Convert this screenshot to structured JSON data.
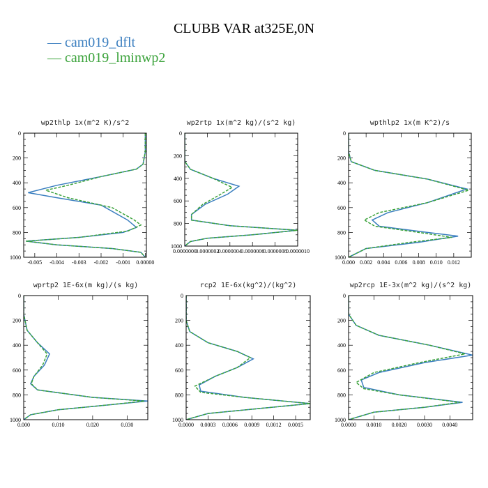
{
  "title": "CLUBB VAR at325E,0N",
  "legend": [
    {
      "name": "cam019_dflt",
      "color": "#3a7ebf",
      "dash": false
    },
    {
      "name": "cam019_lminwp2",
      "color": "#3aa23a",
      "dash": true
    }
  ],
  "chart_data": [
    {
      "type": "line",
      "title": "wp2thlp   1x(m^2 K)/s^2",
      "xlim": [
        -0.0055,
        5e-05
      ],
      "ylim": [
        1000,
        0
      ],
      "xticks": [
        -0.005,
        -0.004,
        -0.003,
        -0.002,
        -0.001,
        0.0
      ],
      "xtick_labels": [
        "-0.005",
        "-0.004",
        "-0.003",
        "-0.002",
        "-0.001",
        "0.00000"
      ],
      "yticks": [
        0,
        200,
        400,
        600,
        800,
        1000
      ],
      "series": [
        {
          "name": "cam019_dflt",
          "points": [
            [
              0,
              0
            ],
            [
              0,
              150
            ],
            [
              -0.0001,
              250
            ],
            [
              -0.0004,
              290
            ],
            [
              -0.002,
              350
            ],
            [
              -0.004,
              420
            ],
            [
              -0.0053,
              480
            ],
            [
              -0.004,
              520
            ],
            [
              -0.002,
              580
            ],
            [
              -0.0008,
              700
            ],
            [
              -0.0004,
              760
            ],
            [
              -0.001,
              800
            ],
            [
              -0.003,
              840
            ],
            [
              -0.0054,
              870
            ],
            [
              -0.004,
              900
            ],
            [
              -0.0015,
              930
            ],
            [
              -0.0002,
              960
            ],
            [
              0,
              1000
            ]
          ]
        },
        {
          "name": "cam019_lminwp2",
          "points": [
            [
              0,
              0
            ],
            [
              0,
              150
            ],
            [
              -0.0001,
              250
            ],
            [
              -0.0004,
              290
            ],
            [
              -0.002,
              350
            ],
            [
              -0.0035,
              420
            ],
            [
              -0.0045,
              460
            ],
            [
              -0.0035,
              520
            ],
            [
              -0.0015,
              600
            ],
            [
              -0.0005,
              700
            ],
            [
              -0.0002,
              740
            ],
            [
              -0.0008,
              790
            ],
            [
              -0.003,
              840
            ],
            [
              -0.0054,
              870
            ],
            [
              -0.004,
              900
            ],
            [
              -0.0015,
              930
            ],
            [
              -0.0002,
              960
            ],
            [
              0,
              1000
            ]
          ]
        }
      ]
    },
    {
      "type": "line",
      "title": "wp2rtp   1x(m^2 kg)/(s^2 kg)",
      "xlim": [
        0.0,
        1e-06
      ],
      "ylim": [
        1000,
        0
      ],
      "xticks": [
        0.0,
        2e-07,
        4e-07,
        6e-07,
        8e-07,
        1e-06
      ],
      "xtick_labels": [
        "0.0000000",
        "0.0000002",
        "0.0000004",
        "0.0000006",
        "0.0000008",
        "0.0000010"
      ],
      "yticks": [
        0,
        200,
        400,
        600,
        800,
        1000
      ],
      "series": [
        {
          "name": "cam019_dflt",
          "points": [
            [
              0,
              0
            ],
            [
              0,
              250
            ],
            [
              5e-08,
              320
            ],
            [
              2.5e-07,
              400
            ],
            [
              4.8e-07,
              470
            ],
            [
              3.8e-07,
              540
            ],
            [
              1.8e-07,
              630
            ],
            [
              6e-08,
              720
            ],
            [
              6e-08,
              770
            ],
            [
              4e-07,
              820
            ],
            [
              1e-06,
              860
            ],
            [
              6e-07,
              900
            ],
            [
              2e-07,
              930
            ],
            [
              5e-08,
              960
            ],
            [
              0,
              1000
            ]
          ]
        },
        {
          "name": "cam019_lminwp2",
          "points": [
            [
              0,
              0
            ],
            [
              0,
              250
            ],
            [
              5e-08,
              320
            ],
            [
              2.5e-07,
              400
            ],
            [
              4.2e-07,
              480
            ],
            [
              3.2e-07,
              540
            ],
            [
              1.6e-07,
              630
            ],
            [
              6e-08,
              720
            ],
            [
              6e-08,
              770
            ],
            [
              4e-07,
              820
            ],
            [
              1e-06,
              860
            ],
            [
              6e-07,
              900
            ],
            [
              2e-07,
              930
            ],
            [
              5e-08,
              960
            ],
            [
              0,
              1000
            ]
          ]
        }
      ]
    },
    {
      "type": "line",
      "title": "wpthlp2   1x(m K^2)/s",
      "xlim": [
        0.0,
        0.014
      ],
      "ylim": [
        1000,
        0
      ],
      "xticks": [
        0.0,
        0.002,
        0.004,
        0.006,
        0.008,
        0.01,
        0.012
      ],
      "xtick_labels": [
        "0.000",
        "0.002",
        "0.004",
        "0.006",
        "0.008",
        "0.010",
        "0.012"
      ],
      "yticks": [
        0,
        200,
        400,
        600,
        800,
        1000
      ],
      "series": [
        {
          "name": "cam019_dflt",
          "points": [
            [
              0,
              0
            ],
            [
              0,
              150
            ],
            [
              0.0003,
              230
            ],
            [
              0.003,
              300
            ],
            [
              0.009,
              370
            ],
            [
              0.0135,
              450
            ],
            [
              0.009,
              560
            ],
            [
              0.0045,
              640
            ],
            [
              0.0027,
              700
            ],
            [
              0.0035,
              750
            ],
            [
              0.009,
              800
            ],
            [
              0.0125,
              830
            ],
            [
              0.008,
              880
            ],
            [
              0.002,
              930
            ],
            [
              0,
              1000
            ]
          ]
        },
        {
          "name": "cam019_lminwp2",
          "points": [
            [
              0,
              0
            ],
            [
              0,
              150
            ],
            [
              0.0003,
              230
            ],
            [
              0.003,
              300
            ],
            [
              0.009,
              370
            ],
            [
              0.0137,
              460
            ],
            [
              0.009,
              560
            ],
            [
              0.0035,
              640
            ],
            [
              0.0018,
              700
            ],
            [
              0.003,
              750
            ],
            [
              0.008,
              800
            ],
            [
              0.0118,
              840
            ],
            [
              0.007,
              880
            ],
            [
              0.002,
              930
            ],
            [
              0,
              1000
            ]
          ]
        }
      ]
    },
    {
      "type": "line",
      "title": "wprtp2   1E-6x(m kg)/(s kg)",
      "xlim": [
        0.0,
        0.036
      ],
      "ylim": [
        1000,
        0
      ],
      "xticks": [
        0.0,
        0.01,
        0.02,
        0.03
      ],
      "xtick_labels": [
        "0.000",
        "0.010",
        "0.020",
        "0.030"
      ],
      "yticks": [
        0,
        200,
        400,
        600,
        800,
        1000
      ],
      "series": [
        {
          "name": "cam019_dflt",
          "points": [
            [
              0,
              0
            ],
            [
              0,
              150
            ],
            [
              0.001,
              280
            ],
            [
              0.004,
              380
            ],
            [
              0.0075,
              470
            ],
            [
              0.006,
              560
            ],
            [
              0.003,
              650
            ],
            [
              0.002,
              710
            ],
            [
              0.004,
              760
            ],
            [
              0.02,
              820
            ],
            [
              0.036,
              850
            ],
            [
              0.025,
              880
            ],
            [
              0.01,
              920
            ],
            [
              0.002,
              960
            ],
            [
              0,
              1000
            ]
          ]
        },
        {
          "name": "cam019_lminwp2",
          "points": [
            [
              0,
              0
            ],
            [
              0,
              150
            ],
            [
              0.001,
              280
            ],
            [
              0.004,
              380
            ],
            [
              0.0068,
              470
            ],
            [
              0.0055,
              560
            ],
            [
              0.003,
              650
            ],
            [
              0.0022,
              710
            ],
            [
              0.004,
              760
            ],
            [
              0.02,
              820
            ],
            [
              0.035,
              850
            ],
            [
              0.025,
              880
            ],
            [
              0.01,
              920
            ],
            [
              0.002,
              960
            ],
            [
              0,
              1000
            ]
          ]
        }
      ]
    },
    {
      "type": "line",
      "title": "rcp2   1E-6x(kg^2)/(kg^2)",
      "xlim": [
        0.0,
        0.0017
      ],
      "ylim": [
        1000,
        0
      ],
      "xticks": [
        0.0,
        0.0003,
        0.0006,
        0.0009,
        0.0012,
        0.0015
      ],
      "xtick_labels": [
        "0.0000",
        "0.0003",
        "0.0006",
        "0.0009",
        "0.0012",
        "0.0015"
      ],
      "yticks": [
        0,
        200,
        400,
        600,
        800,
        1000
      ],
      "series": [
        {
          "name": "cam019_dflt",
          "points": [
            [
              0,
              0
            ],
            [
              0,
              200
            ],
            [
              5e-05,
              290
            ],
            [
              0.0003,
              380
            ],
            [
              0.0007,
              450
            ],
            [
              0.00092,
              510
            ],
            [
              0.0007,
              580
            ],
            [
              0.0004,
              650
            ],
            [
              0.00018,
              720
            ],
            [
              0.0002,
              770
            ],
            [
              0.0008,
              820
            ],
            [
              0.0017,
              870
            ],
            [
              0.001,
              910
            ],
            [
              0.0003,
              950
            ],
            [
              0,
              1000
            ]
          ]
        },
        {
          "name": "cam019_lminwp2",
          "points": [
            [
              0,
              0
            ],
            [
              0,
              200
            ],
            [
              5e-05,
              290
            ],
            [
              0.0003,
              380
            ],
            [
              0.0007,
              450
            ],
            [
              0.00088,
              500
            ],
            [
              0.0007,
              580
            ],
            [
              0.0004,
              650
            ],
            [
              0.00012,
              730
            ],
            [
              0.0002,
              780
            ],
            [
              0.0008,
              820
            ],
            [
              0.0017,
              870
            ],
            [
              0.001,
              910
            ],
            [
              0.0003,
              950
            ],
            [
              0,
              1000
            ]
          ]
        }
      ]
    },
    {
      "type": "line",
      "title": "wp2rcp   1E-3x(m^2 kg)/(s^2 kg)",
      "xlim": [
        0.0,
        0.0049
      ],
      "ylim": [
        1000,
        0
      ],
      "xticks": [
        0.0,
        0.001,
        0.002,
        0.003,
        0.004
      ],
      "xtick_labels": [
        "0.0000",
        "0.0010",
        "0.0020",
        "0.0030",
        "0.0040"
      ],
      "yticks": [
        0,
        200,
        400,
        600,
        800,
        1000
      ],
      "series": [
        {
          "name": "cam019_dflt",
          "points": [
            [
              0,
              0
            ],
            [
              0,
              150
            ],
            [
              0.0003,
              240
            ],
            [
              0.0012,
              320
            ],
            [
              0.0032,
              400
            ],
            [
              0.0049,
              480
            ],
            [
              0.003,
              540
            ],
            [
              0.0012,
              620
            ],
            [
              0.0005,
              680
            ],
            [
              0.0006,
              740
            ],
            [
              0.002,
              800
            ],
            [
              0.0045,
              860
            ],
            [
              0.003,
              900
            ],
            [
              0.001,
              940
            ],
            [
              0,
              1000
            ]
          ]
        },
        {
          "name": "cam019_lminwp2",
          "points": [
            [
              0,
              0
            ],
            [
              0,
              150
            ],
            [
              0.0003,
              240
            ],
            [
              0.0012,
              320
            ],
            [
              0.0032,
              400
            ],
            [
              0.0046,
              470
            ],
            [
              0.0028,
              540
            ],
            [
              0.001,
              620
            ],
            [
              0.0003,
              700
            ],
            [
              0.0006,
              750
            ],
            [
              0.002,
              800
            ],
            [
              0.0044,
              860
            ],
            [
              0.003,
              900
            ],
            [
              0.001,
              940
            ],
            [
              0,
              1000
            ]
          ]
        }
      ]
    }
  ]
}
